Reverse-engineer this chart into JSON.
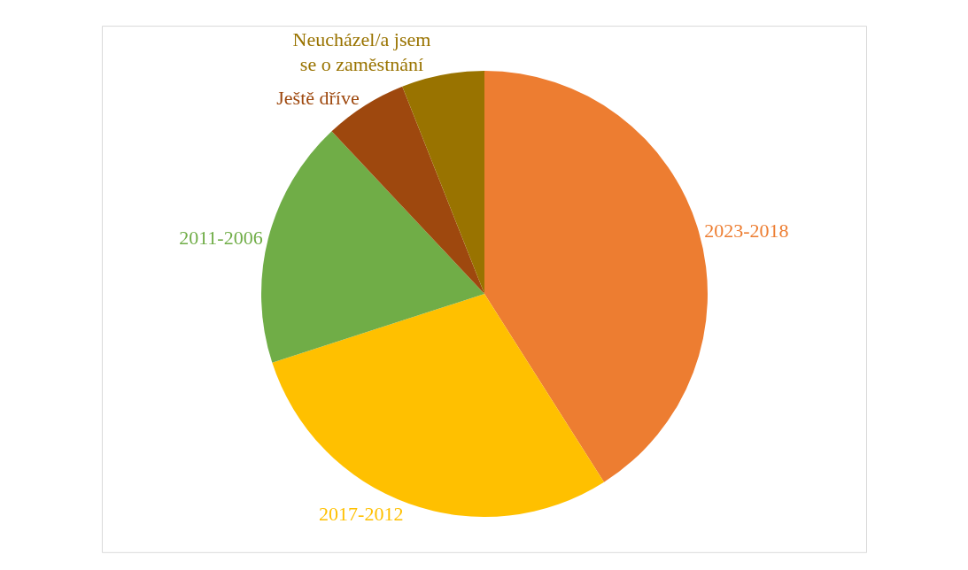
{
  "chart_data": {
    "type": "pie",
    "categories": [
      "2023-2018",
      "2017-2012",
      "2011-2006",
      "Ještě dříve",
      "Neucházel/a jsem se o zaměstnání"
    ],
    "values": [
      41,
      29,
      18,
      6,
      6
    ],
    "colors": [
      "#ed7d31",
      "#ffc000",
      "#70ad47",
      "#9e480e",
      "#997300"
    ],
    "legend": false
  }
}
